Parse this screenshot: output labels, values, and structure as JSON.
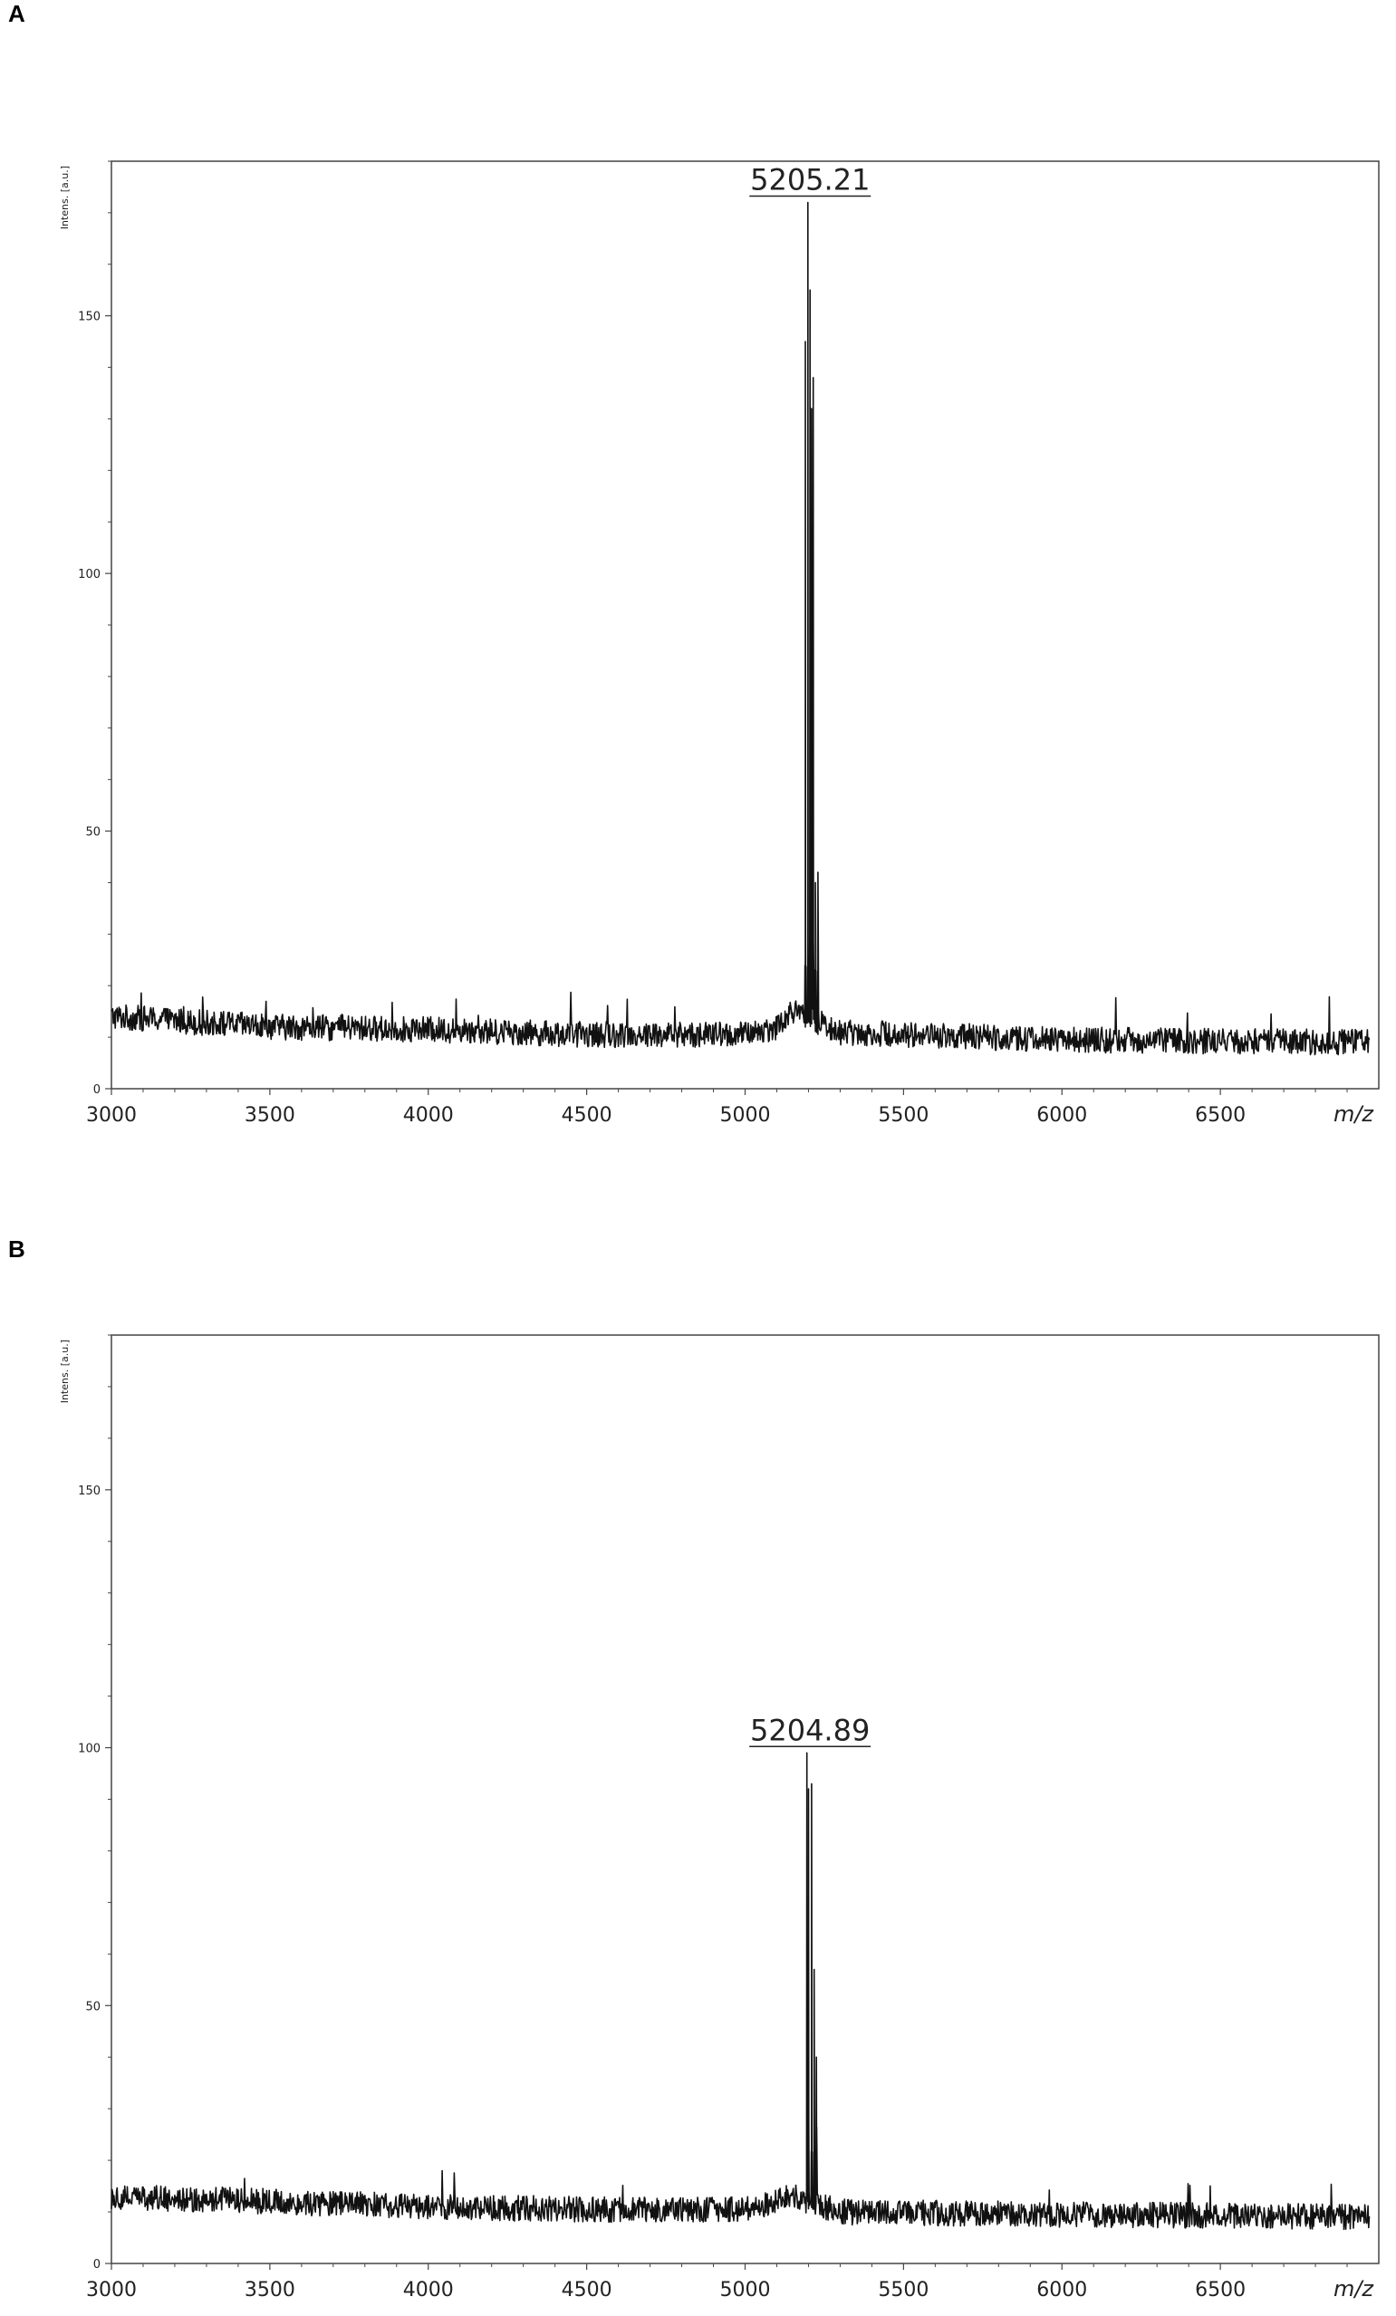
{
  "chart_data": [
    {
      "type": "line",
      "panel_label": "A",
      "xlabel": "m/z",
      "ylabel": "Intens. [a.u.]",
      "xlim": [
        3000,
        7000
      ],
      "ylim": [
        0,
        180
      ],
      "x_ticks": [
        3000,
        3500,
        4000,
        4500,
        5000,
        5500,
        6000,
        6500
      ],
      "y_ticks": [
        0,
        50,
        100,
        150
      ],
      "peak_label": "5205.21",
      "peak_x": 5205.21,
      "baseline": [
        [
          3000,
          14
        ],
        [
          3500,
          12
        ],
        [
          4000,
          11.5
        ],
        [
          4500,
          10.5
        ],
        [
          5000,
          10.5
        ],
        [
          5100,
          12
        ],
        [
          5150,
          15
        ],
        [
          5300,
          11
        ],
        [
          6000,
          9.5
        ],
        [
          7000,
          9
        ]
      ],
      "peaks": [
        [
          5190,
          145
        ],
        [
          5198,
          172
        ],
        [
          5205,
          155
        ],
        [
          5210,
          132
        ],
        [
          5215,
          138
        ],
        [
          5222,
          40
        ],
        [
          5230,
          42
        ]
      ],
      "grid": false,
      "legend": "none"
    },
    {
      "type": "line",
      "panel_label": "B",
      "xlabel": "m/z",
      "ylabel": "Intens. [a.u.]",
      "xlim": [
        3000,
        7000
      ],
      "ylim": [
        0,
        180
      ],
      "x_ticks": [
        3000,
        3500,
        4000,
        4500,
        5000,
        5500,
        6000,
        6500
      ],
      "y_ticks": [
        0,
        50,
        100,
        150
      ],
      "peak_label": "5204.89",
      "peak_x": 5204.89,
      "baseline": [
        [
          3000,
          13
        ],
        [
          3500,
          12
        ],
        [
          4000,
          11
        ],
        [
          4500,
          10.5
        ],
        [
          5000,
          10.5
        ],
        [
          5150,
          13
        ],
        [
          5300,
          10
        ],
        [
          6000,
          9.5
        ],
        [
          7000,
          9
        ]
      ],
      "peaks": [
        [
          5195,
          99
        ],
        [
          5200,
          92
        ],
        [
          5210,
          93
        ],
        [
          5218,
          57
        ],
        [
          5225,
          40
        ]
      ],
      "grid": false,
      "legend": "none"
    }
  ]
}
